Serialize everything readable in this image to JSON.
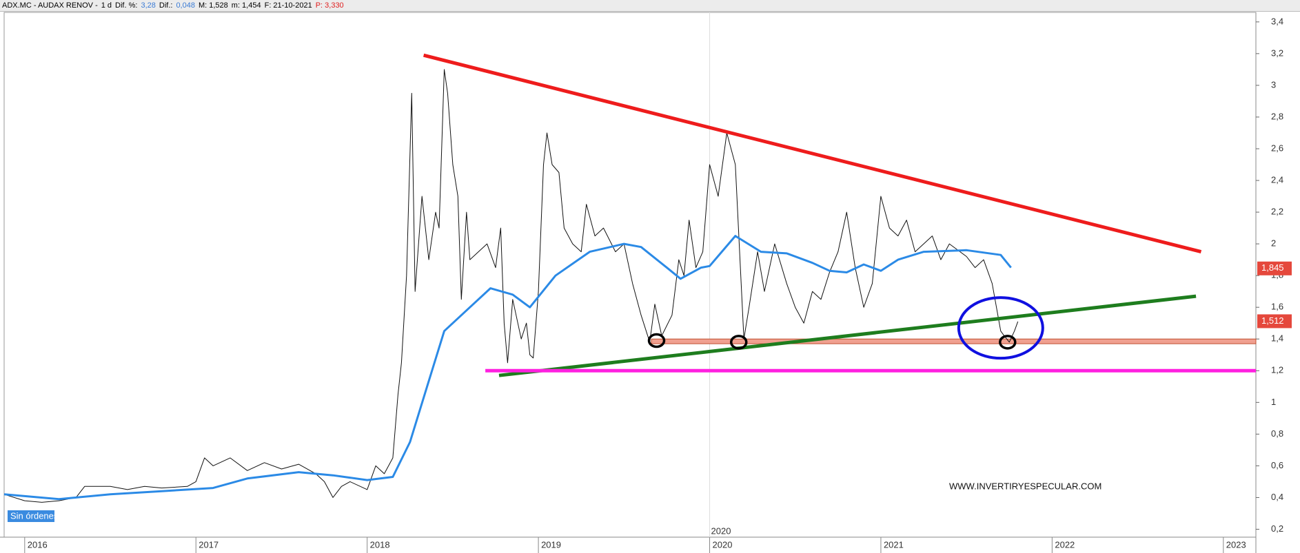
{
  "header": [
    {
      "text": "ADX.MC - AUDAX RENOV -",
      "color": "#000000"
    },
    {
      "text": "1 d",
      "color": "#000000"
    },
    {
      "text": "Dif. %:",
      "color": "#000000"
    },
    {
      "text": "3,28",
      "color": "#3a7bd5"
    },
    {
      "text": "Dif.:",
      "color": "#000000"
    },
    {
      "text": "0,048",
      "color": "#3a7bd5"
    },
    {
      "text": "M: 1,528",
      "color": "#000000"
    },
    {
      "text": "m: 1,454",
      "color": "#000000"
    },
    {
      "text": "F: 21-10-2021",
      "color": "#000000"
    },
    {
      "text": "P: 3,330",
      "color": "#e02020"
    }
  ],
  "chart_data": {
    "type": "line",
    "xlim": [
      2015.88,
      2023.19
    ],
    "ylim": [
      0.15,
      3.46
    ],
    "xticks": [
      2016,
      2017,
      2018,
      2019,
      2020,
      2021,
      2022,
      2023
    ],
    "yticks": [
      {
        "value": 0.2,
        "label": "0,2"
      },
      {
        "value": 0.4,
        "label": "0,4"
      },
      {
        "value": 0.6,
        "label": "0,6"
      },
      {
        "value": 0.8,
        "label": "0,8"
      },
      1,
      {
        "value": 1.2,
        "label": "1,2"
      },
      {
        "value": 1.4,
        "label": "1,4"
      },
      {
        "value": 1.6,
        "label": "1,6"
      },
      {
        "value": 1.8,
        "label": "1,8"
      },
      2,
      {
        "value": 2.2,
        "label": "2,2"
      },
      {
        "value": 2.4,
        "label": "2,4"
      },
      {
        "value": 2.6,
        "label": "2,6"
      },
      {
        "value": 2.8,
        "label": "2,8"
      },
      3,
      {
        "value": 3.2,
        "label": "3,2"
      },
      {
        "value": 3.4,
        "label": "3,4"
      }
    ],
    "series": [
      {
        "color": "#111111",
        "width": 1,
        "x": [
          2015.88,
          2016.0,
          2016.1,
          2016.2,
          2016.3,
          2016.35,
          2016.5,
          2016.6,
          2016.7,
          2016.8,
          2016.95,
          2017.0,
          2017.05,
          2017.1,
          2017.2,
          2017.3,
          2017.4,
          2017.5,
          2017.6,
          2017.7,
          2017.75,
          2017.8,
          2017.85,
          2017.9,
          2018.0,
          2018.05,
          2018.1,
          2018.15,
          2018.18,
          2018.2,
          2018.23,
          2018.26,
          2018.28,
          2018.32,
          2018.36,
          2018.4,
          2018.42,
          2018.45,
          2018.47,
          2018.5,
          2018.53,
          2018.55,
          2018.58,
          2018.6,
          2018.65,
          2018.7,
          2018.75,
          2018.78,
          2018.8,
          2018.82,
          2018.85,
          2018.9,
          2018.93,
          2018.95,
          2018.97,
          2019.0,
          2019.03,
          2019.05,
          2019.08,
          2019.12,
          2019.15,
          2019.2,
          2019.25,
          2019.28,
          2019.33,
          2019.38,
          2019.45,
          2019.5,
          2019.55,
          2019.6,
          2019.65,
          2019.68,
          2019.72,
          2019.78,
          2019.82,
          2019.85,
          2019.88,
          2019.92,
          2019.96,
          2020.0,
          2020.05,
          2020.1,
          2020.15,
          2020.2,
          2020.23,
          2020.28,
          2020.32,
          2020.38,
          2020.45,
          2020.5,
          2020.55,
          2020.6,
          2020.65,
          2020.7,
          2020.75,
          2020.8,
          2020.85,
          2020.9,
          2020.95,
          2021.0,
          2021.05,
          2021.1,
          2021.15,
          2021.2,
          2021.3,
          2021.35,
          2021.4,
          2021.5,
          2021.55,
          2021.6,
          2021.65,
          2021.7,
          2021.72,
          2021.75,
          2021.78,
          2021.8
        ],
        "values": [
          0.42,
          0.38,
          0.37,
          0.38,
          0.4,
          0.47,
          0.47,
          0.45,
          0.47,
          0.46,
          0.47,
          0.5,
          0.65,
          0.6,
          0.65,
          0.57,
          0.62,
          0.58,
          0.61,
          0.55,
          0.5,
          0.4,
          0.47,
          0.5,
          0.45,
          0.6,
          0.55,
          0.65,
          1.05,
          1.25,
          1.8,
          2.95,
          1.7,
          2.3,
          1.9,
          2.2,
          2.1,
          3.1,
          2.95,
          2.5,
          2.3,
          1.65,
          2.2,
          1.9,
          1.95,
          2.0,
          1.85,
          2.1,
          1.5,
          1.25,
          1.65,
          1.4,
          1.5,
          1.3,
          1.28,
          1.7,
          2.5,
          2.7,
          2.5,
          2.45,
          2.1,
          2.0,
          1.95,
          2.25,
          2.05,
          2.1,
          1.95,
          2.0,
          1.75,
          1.55,
          1.38,
          1.62,
          1.42,
          1.55,
          1.9,
          1.8,
          2.15,
          1.85,
          1.95,
          2.5,
          2.3,
          2.7,
          2.5,
          1.4,
          1.6,
          1.95,
          1.7,
          2.0,
          1.75,
          1.6,
          1.5,
          1.7,
          1.65,
          1.82,
          1.95,
          2.2,
          1.85,
          1.6,
          1.75,
          2.3,
          2.1,
          2.05,
          2.15,
          1.95,
          2.05,
          1.9,
          2.0,
          1.92,
          1.85,
          1.9,
          1.75,
          1.45,
          1.42,
          1.38,
          1.45,
          1.51
        ]
      },
      {
        "color": "#2b8ae6",
        "width": 3,
        "x": [
          2015.88,
          2016.2,
          2016.5,
          2016.8,
          2017.1,
          2017.3,
          2017.6,
          2017.8,
          2018.0,
          2018.15,
          2018.25,
          2018.35,
          2018.45,
          2018.6,
          2018.72,
          2018.85,
          2018.95,
          2019.1,
          2019.3,
          2019.5,
          2019.6,
          2019.75,
          2019.83,
          2019.95,
          2020.0,
          2020.15,
          2020.3,
          2020.45,
          2020.6,
          2020.7,
          2020.8,
          2020.9,
          2021.0,
          2021.1,
          2021.25,
          2021.5,
          2021.7,
          2021.76
        ],
        "values": [
          0.42,
          0.39,
          0.42,
          0.44,
          0.46,
          0.52,
          0.56,
          0.54,
          0.51,
          0.53,
          0.75,
          1.1,
          1.45,
          1.6,
          1.72,
          1.68,
          1.6,
          1.8,
          1.95,
          2.0,
          1.98,
          1.85,
          1.78,
          1.85,
          1.86,
          2.05,
          1.95,
          1.94,
          1.88,
          1.83,
          1.82,
          1.87,
          1.83,
          1.9,
          1.95,
          1.96,
          1.93,
          1.85
        ]
      }
    ],
    "trendlines": [
      {
        "color": "#ee1c1c",
        "x": [
          2018.33,
          2022.87
        ],
        "values": [
          3.19,
          1.95
        ]
      },
      {
        "color": "#1e7d1e",
        "x": [
          2018.77,
          2022.84
        ],
        "values": [
          1.17,
          1.67
        ]
      },
      {
        "color": "#ff20e0",
        "x": [
          2018.69,
          2023.19
        ],
        "values": [
          1.2,
          1.2
        ]
      }
    ],
    "band": {
      "color": "#f0a090",
      "x": [
        2019.66,
        2023.19
      ],
      "values": [
        1.37,
        1.4
      ]
    },
    "circles": [
      {
        "x": 2019.69,
        "y": 1.39
      },
      {
        "x": 2020.17,
        "y": 1.38
      },
      {
        "x": 2021.74,
        "y": 1.38
      }
    ],
    "ellipse": {
      "x": 2021.7,
      "y": 1.47,
      "color": "#1010e0"
    },
    "price_tags": [
      {
        "value": 1.845,
        "label": "1,845"
      },
      {
        "value": 1.512,
        "label": "1,512"
      }
    ],
    "crosshair_label": "2020",
    "watermark": "WWW.INVERTIRYESPECULAR.COM",
    "status": "Sin órdenes"
  }
}
